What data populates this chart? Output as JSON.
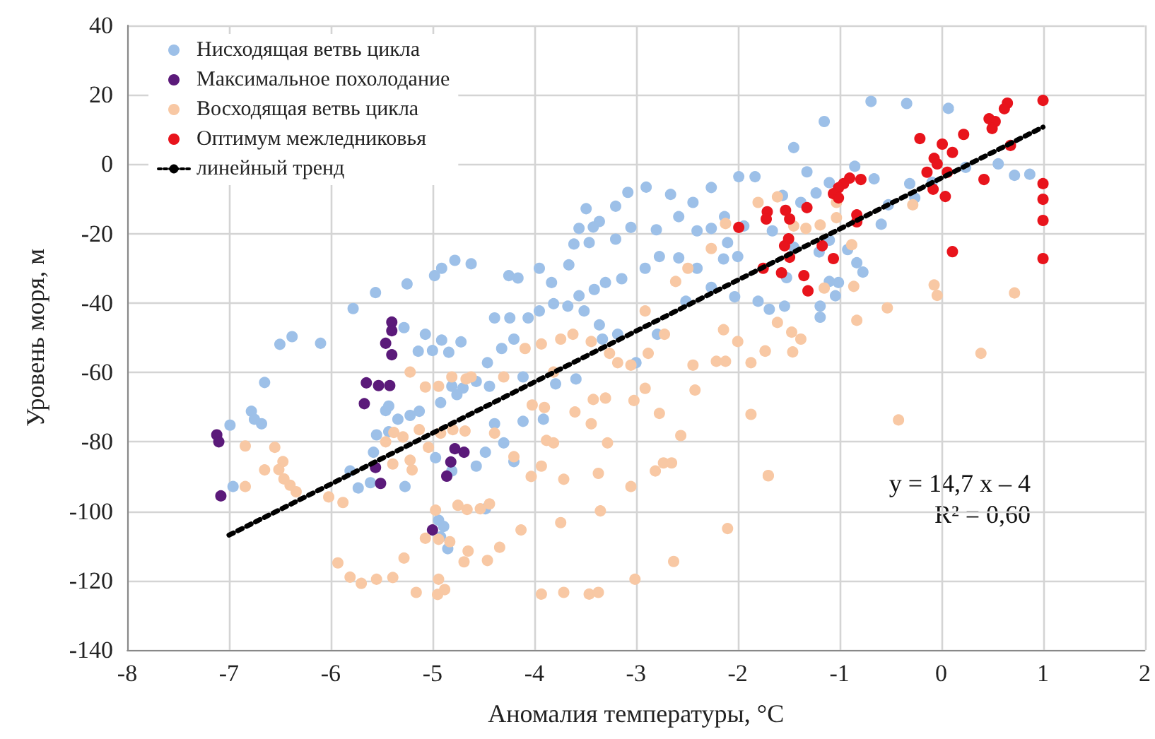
{
  "chart_data": {
    "type": "scatter",
    "xlabel": "Аномалия температуры, °C",
    "ylabel": "Уровень моря, м",
    "annotations": [
      "y = 14,7 x – 4",
      "R² = 0,60"
    ],
    "xlim": [
      -8,
      2
    ],
    "ylim": [
      -140,
      40
    ],
    "xticks": [
      -8,
      -7,
      -6,
      -5,
      -4,
      -3,
      -2,
      -1,
      0,
      1,
      2
    ],
    "yticks": [
      -140,
      -120,
      -100,
      -80,
      -60,
      -40,
      -20,
      0,
      20,
      40
    ],
    "grid": true,
    "legend": "top left",
    "marker": "circle",
    "series": [
      {
        "name": "Нисходящая ветвь цикла",
        "color": "#9dc0e8",
        "x": [
          -4.78,
          -4.91,
          -4.98,
          -5.25,
          -5.56,
          -5.78,
          -5.28,
          -5.07,
          -4.91,
          -4.72,
          -5.14,
          -5.0,
          -4.84,
          -6.38,
          -6.5,
          -6.1,
          -6.65,
          -6.78,
          -6.75,
          -6.68,
          -6.99,
          -6.96,
          -5.81,
          -5.73,
          -5.61,
          -5.27,
          -5.46,
          -5.43,
          -5.34,
          -5.22,
          -5.13,
          -5.55,
          -5.43,
          -5.58,
          -4.97,
          -4.81,
          -4.7,
          -4.76,
          -4.92,
          -4.94,
          -4.89,
          -4.85,
          -4.92,
          -4.81,
          -1.99,
          -1.83,
          -2.26,
          -2.44,
          -2.66,
          -2.9,
          -3.08,
          -3.2,
          -3.49,
          -3.36,
          -3.42,
          -3.56,
          -3.61,
          -3.46,
          -3.2,
          -3.05,
          -2.8,
          -2.58,
          -2.4,
          -2.26,
          -2.13,
          -2.1,
          -1.94,
          -2.77,
          -2.91,
          -2.58,
          -2.4,
          -2.14,
          -2.0,
          -3.14,
          -3.3,
          -3.41,
          -3.56,
          -3.67,
          -3.81,
          -3.95,
          -4.06,
          -4.24,
          -4.39,
          -3.95,
          -3.83,
          -3.66,
          -3.51,
          -3.36,
          -3.18,
          -3.33,
          -4.2,
          -4.32,
          -4.46,
          -4.57,
          -4.11,
          -3.79,
          -3.59,
          -4.44,
          -4.39,
          -4.3,
          -4.48,
          -4.57,
          -4.2,
          -4.11,
          -3.91,
          -4.62,
          -4.25,
          -4.16,
          -4.48,
          -3.0,
          -2.79,
          -2.51,
          -2.26,
          -2.03,
          -1.8,
          -0.69,
          -0.34,
          0.07,
          -1.15,
          -1.45,
          -1.32,
          -0.85,
          -0.66,
          -0.31,
          -0.09,
          0.24,
          0.56,
          0.72,
          0.87,
          -0.59,
          -0.52,
          -0.26,
          -1.1,
          -1.23,
          -1.38,
          -1.56,
          -1.66,
          -1.45,
          -1.2,
          -0.92,
          -0.83,
          -0.77,
          -1.1,
          -1.01,
          -1.04,
          -1.19,
          -1.19,
          -1.54,
          -1.69,
          -1.1,
          -1.52
        ],
        "values": [
          -27.7,
          -30,
          -32.1,
          -34.5,
          -37,
          -41.6,
          -47.1,
          -49,
          -50.7,
          -51.2,
          -53.9,
          -53.7,
          -54.2,
          -49.7,
          -51.9,
          -51.6,
          -62.9,
          -71.2,
          -73.5,
          -74.8,
          -75.2,
          -92.9,
          -88.4,
          -93.3,
          -91.8,
          -92.9,
          -71,
          -69.7,
          -73.5,
          -72.4,
          -71.2,
          -78,
          -77.1,
          -83,
          -84.6,
          -64,
          -64.5,
          -66.4,
          -68.7,
          -102.6,
          -104.4,
          -110.8,
          -107.4,
          -88.4,
          -3.6,
          -3.6,
          -6.7,
          -11,
          -8.7,
          -6.6,
          -8.1,
          -12.1,
          -12.8,
          -16.5,
          -18.1,
          -18.5,
          -23,
          -22.6,
          -21.6,
          -18.2,
          -18.9,
          -15.1,
          -19.2,
          -18.5,
          -15.1,
          -22.6,
          -17.8,
          -26.6,
          -30,
          -27,
          -30,
          -27.3,
          -26.6,
          -33,
          -34.1,
          -36.1,
          -37.9,
          -40.9,
          -40.2,
          -42.3,
          -44.3,
          -44.3,
          -44.3,
          -30,
          -34.1,
          -29,
          -42.3,
          -46.3,
          -49,
          -50.4,
          -50.4,
          -53.1,
          -57.2,
          -62.6,
          -61.3,
          -63.3,
          -61.9,
          -64,
          -74.8,
          -80.3,
          -83,
          -87,
          -85.7,
          -74.1,
          -73.5,
          -28.7,
          -32.1,
          -32.8,
          -99.3,
          -57.2,
          -49,
          -39.5,
          -35.5,
          -38.2,
          -39.5,
          18.1,
          17.5,
          16.1,
          12.3,
          4.8,
          -2.2,
          -0.6,
          -4.2,
          -5.6,
          -5.2,
          -0.9,
          0.1,
          -3.2,
          -2.9,
          -17.3,
          -11.7,
          -9.7,
          -5.3,
          -8.3,
          -11,
          -9,
          -19.2,
          -23.9,
          -25.3,
          -24.6,
          -28.4,
          -31.1,
          -33.8,
          -34.1,
          -37.9,
          -40.9,
          -44.1,
          -40.9,
          -41.8,
          -21.9,
          -32.7
        ]
      },
      {
        "name": "Максимальное похолодание",
        "color": "#5b1a7a",
        "x": [
          -7.12,
          -7.1,
          -7.08,
          -5.4,
          -5.4,
          -5.46,
          -5.4,
          -5.65,
          -5.53,
          -5.42,
          -5.67,
          -5.56,
          -5.51,
          -4.82,
          -4.86,
          -4.78,
          -4.69,
          -5.0
        ],
        "values": [
          -78,
          -80,
          -95.6,
          -45.5,
          -48,
          -51.6,
          -54.9,
          -63,
          -63.8,
          -63.8,
          -69,
          -87.4,
          -92,
          -85.8,
          -89.9,
          -82,
          -83,
          -105.4
        ]
      },
      {
        "name": "Восходящая ветвь цикла",
        "color": "#f8c8a4",
        "x": [
          -6.84,
          -6.55,
          -6.47,
          -6.65,
          -6.51,
          -6.46,
          -6.4,
          -6.34,
          -6.84,
          -6.02,
          -5.88,
          -5.93,
          -5.81,
          -5.7,
          -5.55,
          -5.39,
          -5.16,
          -5.28,
          -5.07,
          -4.94,
          -4.97,
          -4.94,
          -4.95,
          -4.88,
          -5.22,
          -5.07,
          -4.94,
          -4.81,
          -4.67,
          -5.46,
          -5.38,
          -5.29,
          -5.22,
          -5.2,
          -5.39,
          -5.13,
          -5.04,
          -4.92,
          -4.8,
          -4.68,
          -4.75,
          -4.66,
          -4.69,
          -4.65,
          -4.83,
          -1.8,
          -2.12,
          -2.26,
          -2.49,
          -2.61,
          -2.91,
          -2.72,
          -2.88,
          -3.05,
          -3.18,
          -3.26,
          -3.44,
          -3.62,
          -3.74,
          -3.93,
          -4.09,
          -3.81,
          -4.3,
          -4.62,
          -3.42,
          -3.3,
          -3.6,
          -3.9,
          -4.02,
          -3.44,
          -3.02,
          -2.91,
          -2.77,
          -2.42,
          -2.44,
          -2.21,
          -2.12,
          -1.87,
          -2.14,
          -2.0,
          -1.73,
          -1.87,
          -2.56,
          -2.73,
          -2.81,
          -2.65,
          -3.05,
          -3.28,
          -3.37,
          -3.88,
          -3.81,
          -3.93,
          -4.03,
          -3.71,
          -3.74,
          -3.35,
          -4.13,
          -4.34,
          -4.46,
          -3.93,
          -3.71,
          -3.46,
          -3.37,
          -3.01,
          -2.63,
          -2.1,
          -1.7,
          -4.44,
          -4.53,
          -4.2,
          -4.39,
          -1.61,
          -1.03,
          -1.03,
          -1.19,
          -0.88,
          -0.86,
          -1.15,
          -0.53,
          -0.83,
          -0.28,
          -0.07,
          -0.04,
          0.72,
          0.39,
          -0.42,
          -1.38,
          -1.47,
          -1.46,
          -1.61,
          -1.73,
          -1.7,
          -1.33,
          -1.45
        ],
        "values": [
          -81.2,
          -81.6,
          -85.7,
          -88.1,
          -88,
          -90.7,
          -92.5,
          -94.4,
          -92.9,
          -95.9,
          -97.5,
          -114.9,
          -119,
          -120.8,
          -119.6,
          -119.1,
          -123.4,
          -113.5,
          -107.8,
          -108.1,
          -99.7,
          -119.6,
          -124,
          -122.6,
          -59.9,
          -64.2,
          -64,
          -61.3,
          -61.9,
          -80,
          -77.3,
          -78.6,
          -85.3,
          -88.1,
          -86.4,
          -76.5,
          -81.6,
          -77.5,
          -76.5,
          -76.9,
          -98.3,
          -99.5,
          -114.6,
          -111.5,
          -108.8,
          -11,
          -17.1,
          -24.3,
          -30,
          -33.8,
          -42.3,
          -49,
          -54.5,
          -57.9,
          -57.2,
          -54.5,
          -51.1,
          -49,
          -50.4,
          -51.8,
          -53.1,
          -59.9,
          -61.3,
          -61.3,
          -67.8,
          -67.4,
          -71.4,
          -70.1,
          -69.4,
          -74.8,
          -68.1,
          -64.6,
          -71.8,
          -65.1,
          -57.9,
          -56.8,
          -56.8,
          -57.2,
          -47.7,
          -51.1,
          -53.8,
          -72.1,
          -78.2,
          -86.1,
          -88.4,
          -86.1,
          -92.9,
          -80.3,
          -89.1,
          -79.6,
          -80.3,
          -87,
          -90,
          -90.8,
          -103.3,
          -99.9,
          -105.4,
          -110.4,
          -114.2,
          -123.9,
          -123.4,
          -123.9,
          -123.4,
          -119.6,
          -114.5,
          -105,
          -89.8,
          -97.9,
          -99.3,
          -84.3,
          -77.5,
          -9.4,
          -11,
          -15.4,
          -17.5,
          -23.2,
          -35.2,
          -35.7,
          -41.4,
          -45,
          -11.7,
          -34.8,
          -37.8,
          -37.1,
          -54.5,
          -73.7,
          -50.4,
          -48.4,
          -54.1,
          -45.6,
          -53.9,
          -89.7,
          -18.5,
          -17.8
        ]
      },
      {
        "name": "Оптимум межледниковья",
        "color": "#e8141c",
        "x": [
          1.0,
          0.65,
          0.62,
          0.47,
          0.53,
          0.5,
          0.22,
          -0.21,
          0.01,
          0.11,
          -0.07,
          -0.04,
          -0.14,
          0.06,
          -0.08,
          0.04,
          0.68,
          0.42,
          1.0,
          1.0,
          1.0,
          1.0,
          0.11,
          -0.79,
          -0.9,
          -0.96,
          -1.01,
          -1.06,
          -1.01,
          -0.83,
          -0.83,
          -1.32,
          -1.53,
          -1.71,
          -1.49,
          -1.5,
          -1.54,
          -1.49,
          -1.17,
          -1.06,
          -1.57,
          -1.35,
          -1.31,
          -1.75,
          -1.99,
          -1.72
        ],
        "values": [
          18.4,
          17.6,
          16,
          13.1,
          12.3,
          10.3,
          8.6,
          7.4,
          5.8,
          3.4,
          1.7,
          0.1,
          -2.3,
          -2.3,
          -7.2,
          -9.3,
          5.4,
          -4.4,
          -5.6,
          -10.1,
          -16.2,
          -27.2,
          -25.2,
          -4.4,
          -4,
          -5.6,
          -6.8,
          -8.5,
          -9.7,
          -14.6,
          -16.6,
          -12.5,
          -13.3,
          -13.7,
          -15.8,
          -21.5,
          -23.5,
          -26.8,
          -23.5,
          -27.2,
          -31.3,
          -32.1,
          -36.5,
          -30,
          -18.2,
          -15.8
        ]
      },
      {
        "name": "линейный тренд",
        "type": "line",
        "color": "#000000",
        "marker": "none",
        "line_style": "dotted",
        "x": [
          -7,
          1
        ],
        "values": [
          -106.9,
          10.7
        ]
      }
    ]
  }
}
